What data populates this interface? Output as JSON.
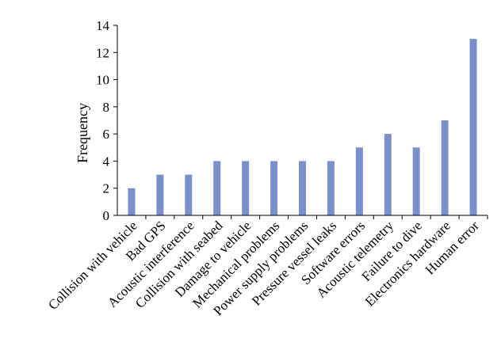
{
  "chart_data": {
    "type": "bar",
    "title": "",
    "xlabel": "",
    "ylabel": "Frequency",
    "ylim": [
      0,
      14
    ],
    "yticks": [
      0,
      2,
      4,
      6,
      8,
      10,
      12,
      14
    ],
    "grid": false,
    "legend": "none",
    "bar_color": "#7b8fcc",
    "categories": [
      "Collision with vehicle",
      "Bad GPS",
      "Acoustic interference",
      "Collision with seabed",
      "Damage to vehicle",
      "Mechanical problems",
      "Power supply problems",
      "Pressure vessel leaks",
      "Software errors",
      "Acoustic telemetry",
      "Failure to dive",
      "Electronics hardware",
      "Human error"
    ],
    "values": [
      2,
      3,
      3,
      4,
      4,
      4,
      4,
      4,
      5,
      6,
      5,
      7,
      13
    ]
  }
}
